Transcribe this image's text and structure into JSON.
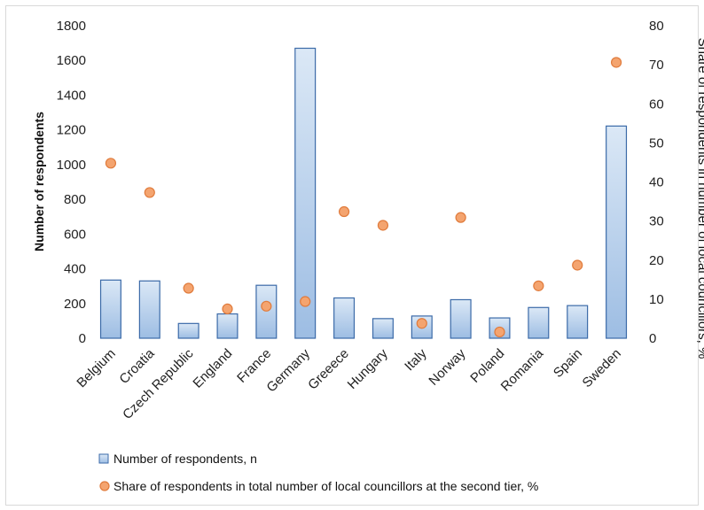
{
  "chart_data": {
    "type": "bar",
    "categories": [
      "Belgium",
      "Croatia",
      "Czech Republic",
      "England",
      "France",
      "Germany",
      "Greeece",
      "Hungary",
      "Italy",
      "Norway",
      "Poland",
      "Romania",
      "Spain",
      "Sweden"
    ],
    "series": [
      {
        "name": "Number of respondents, n",
        "type": "bar",
        "axis": "left",
        "values": [
          335,
          330,
          85,
          140,
          305,
          1670,
          232,
          113,
          128,
          222,
          117,
          177,
          188,
          1222
        ]
      },
      {
        "name": "Share of respondents in total number of local councillors at the second tier, %",
        "type": "scatter",
        "axis": "right",
        "values": [
          44.8,
          37.3,
          12.8,
          7.5,
          8.2,
          9.4,
          32.4,
          28.9,
          3.8,
          30.9,
          1.6,
          13.4,
          18.7,
          70.6
        ]
      }
    ],
    "ylabel": "Number of respondents",
    "y2label": "Share of respondents in number of local councillors, %",
    "ylim": [
      0,
      1800
    ],
    "y2lim": [
      0,
      80
    ],
    "yticks": [
      "0",
      "200",
      "400",
      "600",
      "800",
      "1000",
      "1200",
      "1400",
      "1600",
      "1800"
    ],
    "y2ticks": [
      "0",
      "10",
      "20",
      "30",
      "40",
      "50",
      "60",
      "70",
      "80"
    ],
    "grid": false,
    "legend_position": "bottom-left",
    "colors": {
      "bar_fill_top": "#dbe8f6",
      "bar_fill_bottom": "#9dbde3",
      "bar_stroke": "#3b6aa8",
      "marker_fill": "#f4a46f",
      "marker_stroke": "#e07b3c"
    }
  }
}
